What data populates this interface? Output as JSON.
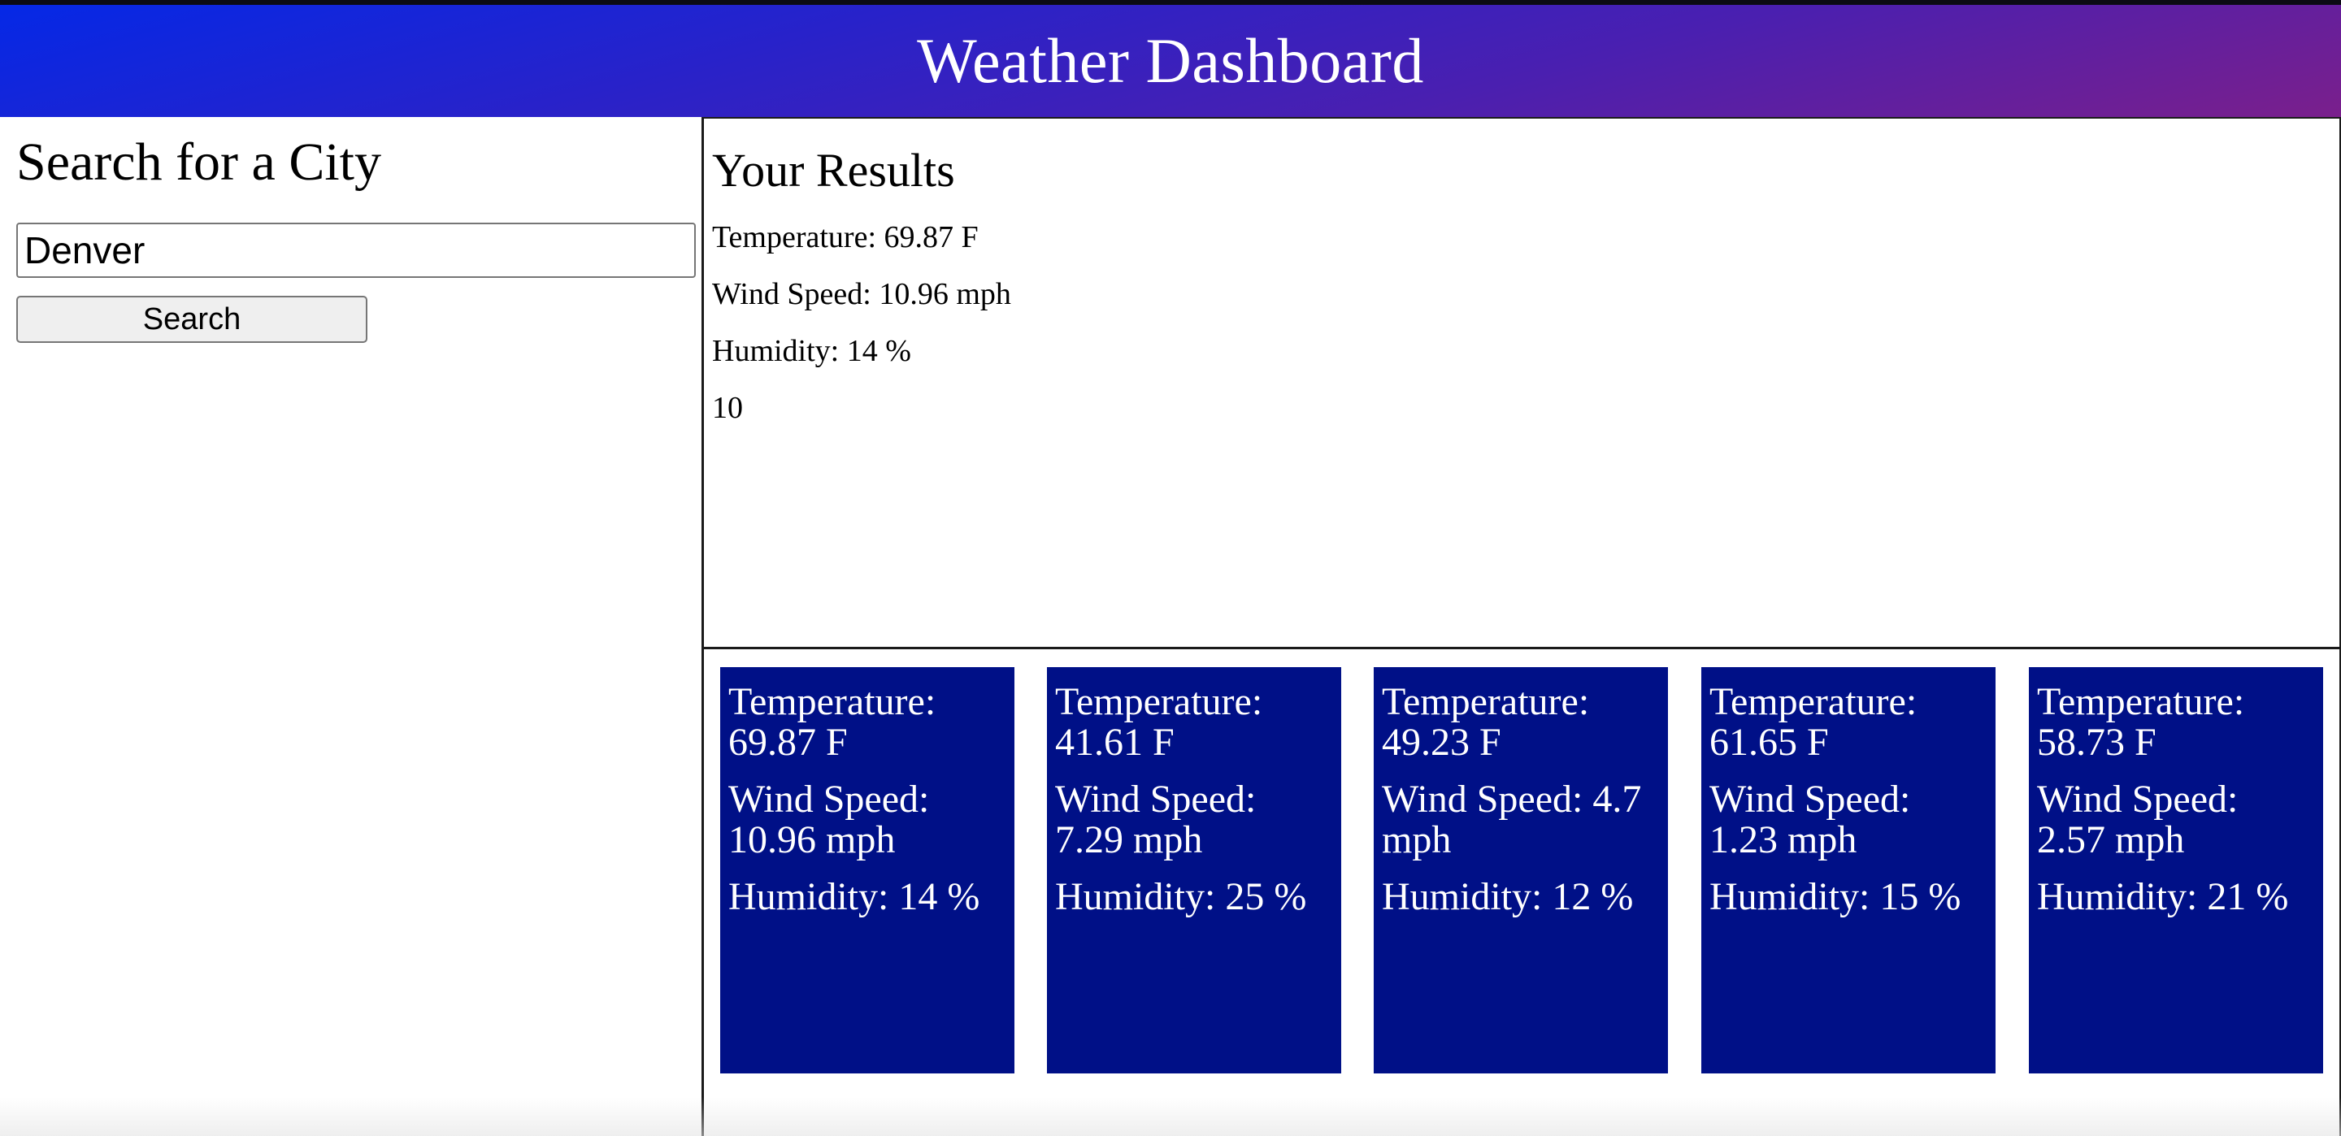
{
  "header": {
    "title": "Weather Dashboard"
  },
  "search": {
    "heading": "Search for a City",
    "input_value": "Denver",
    "button_label": "Search"
  },
  "results": {
    "heading": "Your Results",
    "temperature": "Temperature: 69.87 F",
    "wind": "Wind Speed: 10.96 mph",
    "humidity": "Humidity: 14 %",
    "extra": "10"
  },
  "forecast": [
    {
      "temperature": "Temperature: 69.87 F",
      "wind": "Wind Speed: 10.96 mph",
      "humidity": "Humidity: 14 %"
    },
    {
      "temperature": "Temperature: 41.61 F",
      "wind": "Wind Speed: 7.29 mph",
      "humidity": "Humidity: 25 %"
    },
    {
      "temperature": "Temperature: 49.23 F",
      "wind": "Wind Speed: 4.7 mph",
      "humidity": "Humidity: 12 %"
    },
    {
      "temperature": "Temperature: 61.65 F",
      "wind": "Wind Speed: 1.23 mph",
      "humidity": "Humidity: 15 %"
    },
    {
      "temperature": "Temperature: 58.73 F",
      "wind": "Wind Speed: 2.57 mph",
      "humidity": "Humidity: 21 %"
    }
  ],
  "colors": {
    "header_gradient_start": "#0528e6",
    "header_gradient_end": "#7a1f8c",
    "card_background": "#001087",
    "card_text": "#ffffff"
  }
}
